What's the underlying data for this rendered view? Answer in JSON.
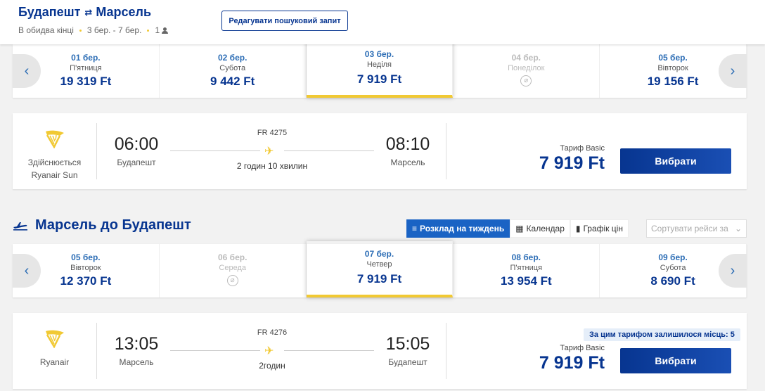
{
  "header": {
    "origin": "Будапешт",
    "destination": "Марсель",
    "swap_glyph": "⇄",
    "trip_type": "В обидва кінці",
    "dates": "3 бер. - 7 бер.",
    "passengers": "1",
    "edit_label": "Редагувати пошуковий запит"
  },
  "outbound": {
    "dates": [
      {
        "date": "01 бер.",
        "weekday": "П'ятниця",
        "price": "19 319 Ft",
        "available": true,
        "selected": false
      },
      {
        "date": "02 бер.",
        "weekday": "Субота",
        "price": "9 442 Ft",
        "available": true,
        "selected": false
      },
      {
        "date": "03 бер.",
        "weekday": "Неділя",
        "price": "7 919 Ft",
        "available": true,
        "selected": true
      },
      {
        "date": "04 бер.",
        "weekday": "Понеділок",
        "price": "",
        "available": false,
        "selected": false
      },
      {
        "date": "05 бер.",
        "weekday": "Вівторок",
        "price": "19 156 Ft",
        "available": true,
        "selected": false
      }
    ],
    "flight": {
      "airline_line1": "Здійснюється",
      "airline_line2": "Ryanair Sun",
      "dep_time": "06:00",
      "dep_city": "Будапешт",
      "flight_number": "FR 4275",
      "duration": "2 годин 10 хвилин",
      "arr_time": "08:10",
      "arr_city": "Марсель",
      "fare_label": "Тариф Basic",
      "price": "7 919 Ft",
      "select_label": "Вибрати"
    }
  },
  "return_section": {
    "title": "Марсель до Будапешт",
    "tools": {
      "weekly": "Розклад на тиждень",
      "calendar": "Календар",
      "price_graph": "Графік цін"
    },
    "sort_placeholder": "Сортувати рейси за",
    "dates": [
      {
        "date": "05 бер.",
        "weekday": "Вівторок",
        "price": "12 370 Ft",
        "available": true,
        "selected": false
      },
      {
        "date": "06 бер.",
        "weekday": "Середа",
        "price": "",
        "available": false,
        "selected": false
      },
      {
        "date": "07 бер.",
        "weekday": "Четвер",
        "price": "7 919 Ft",
        "available": true,
        "selected": true
      },
      {
        "date": "08 бер.",
        "weekday": "П'ятниця",
        "price": "13 954 Ft",
        "available": true,
        "selected": false
      },
      {
        "date": "09 бер.",
        "weekday": "Субота",
        "price": "8 690 Ft",
        "available": true,
        "selected": false
      }
    ],
    "flight": {
      "airline_line1": "Ryanair",
      "dep_time": "13:05",
      "dep_city": "Марсель",
      "flight_number": "FR 4276",
      "duration": "2годин",
      "arr_time": "15:05",
      "arr_city": "Будапешт",
      "seats_left": "За цим тарифом залишилося місць: 5",
      "fare_label": "Тариф Basic",
      "price": "7 919 Ft",
      "select_label": "Вибрати"
    }
  },
  "colors": {
    "brand_blue": "#073590",
    "accent_yellow": "#f1c933",
    "link_blue": "#2c6db5",
    "active_tab": "#1a63c4"
  },
  "icons": {
    "no_flight": "⌀",
    "plane": "✈",
    "arrow_left": "‹",
    "arrow_right": "›",
    "calendar": "▦",
    "list": "≡",
    "chart": "▮",
    "chevron": "⌄"
  }
}
